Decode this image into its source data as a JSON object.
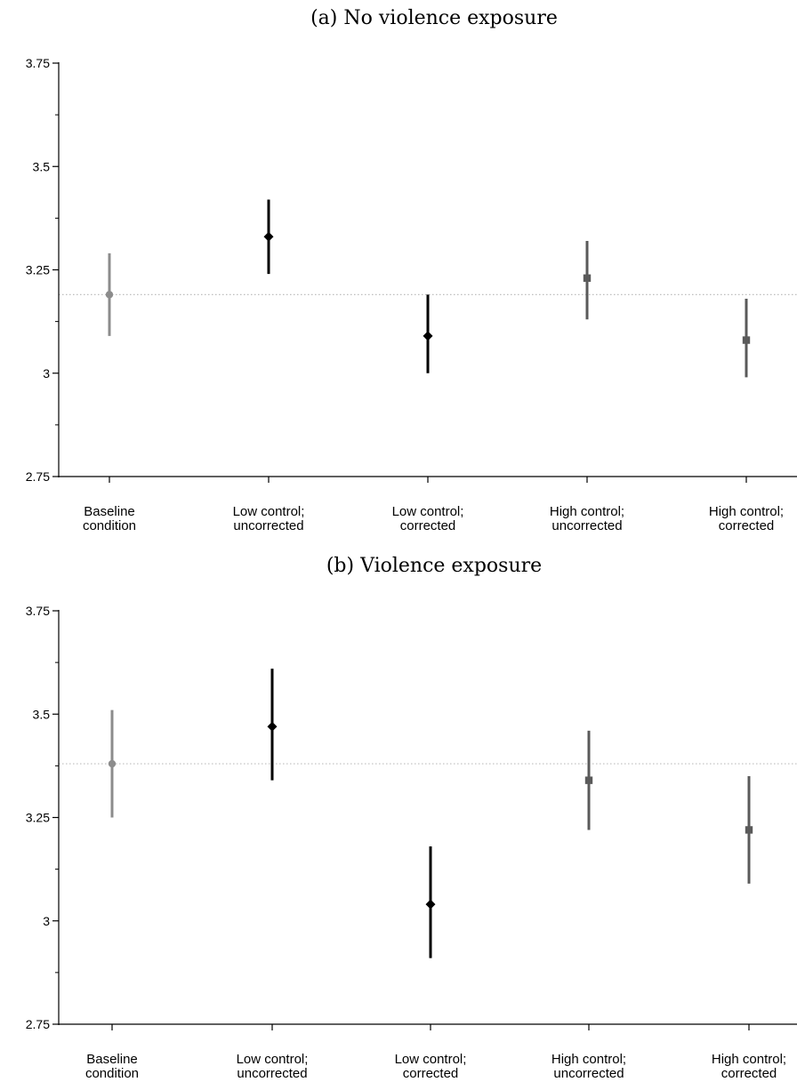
{
  "chart_data": [
    {
      "type": "scatter",
      "title": "(a) No violence exposure",
      "categories": [
        [
          "Baseline",
          "condition"
        ],
        [
          "Low control;",
          "uncorrected"
        ],
        [
          "Low control;",
          "corrected"
        ],
        [
          "High control;",
          "uncorrected"
        ],
        [
          "High control;",
          "corrected"
        ]
      ],
      "ylim": [
        2.75,
        3.75
      ],
      "yticks": [
        "2.75",
        "3",
        "3.25",
        "3.5",
        "3.75"
      ],
      "reference_line": 3.19,
      "points": [
        {
          "y": 3.19,
          "low": 3.09,
          "high": 3.29,
          "marker": "circle",
          "color": "#8c8c8c"
        },
        {
          "y": 3.33,
          "low": 3.24,
          "high": 3.42,
          "marker": "diamond",
          "color": "#000000"
        },
        {
          "y": 3.09,
          "low": 3.0,
          "high": 3.19,
          "marker": "diamond",
          "color": "#000000"
        },
        {
          "y": 3.23,
          "low": 3.13,
          "high": 3.32,
          "marker": "square",
          "color": "#5a5a5a"
        },
        {
          "y": 3.08,
          "low": 2.99,
          "high": 3.18,
          "marker": "square",
          "color": "#5a5a5a"
        }
      ]
    },
    {
      "type": "scatter",
      "title": "(b) Violence exposure",
      "categories": [
        [
          "Baseline",
          "condition"
        ],
        [
          "Low control;",
          "uncorrected"
        ],
        [
          "Low control;",
          "corrected"
        ],
        [
          "High control;",
          "uncorrected"
        ],
        [
          "High control;",
          "corrected"
        ]
      ],
      "ylim": [
        2.75,
        3.75
      ],
      "yticks": [
        "2.75",
        "3",
        "3.25",
        "3.5",
        "3.75"
      ],
      "reference_line": 3.38,
      "points": [
        {
          "y": 3.38,
          "low": 3.25,
          "high": 3.51,
          "marker": "circle",
          "color": "#8c8c8c"
        },
        {
          "y": 3.47,
          "low": 3.34,
          "high": 3.61,
          "marker": "diamond",
          "color": "#000000"
        },
        {
          "y": 3.04,
          "low": 2.91,
          "high": 3.18,
          "marker": "diamond",
          "color": "#000000"
        },
        {
          "y": 3.34,
          "low": 3.22,
          "high": 3.46,
          "marker": "square",
          "color": "#5a5a5a"
        },
        {
          "y": 3.22,
          "low": 3.09,
          "high": 3.35,
          "marker": "square",
          "color": "#5a5a5a"
        }
      ]
    }
  ]
}
